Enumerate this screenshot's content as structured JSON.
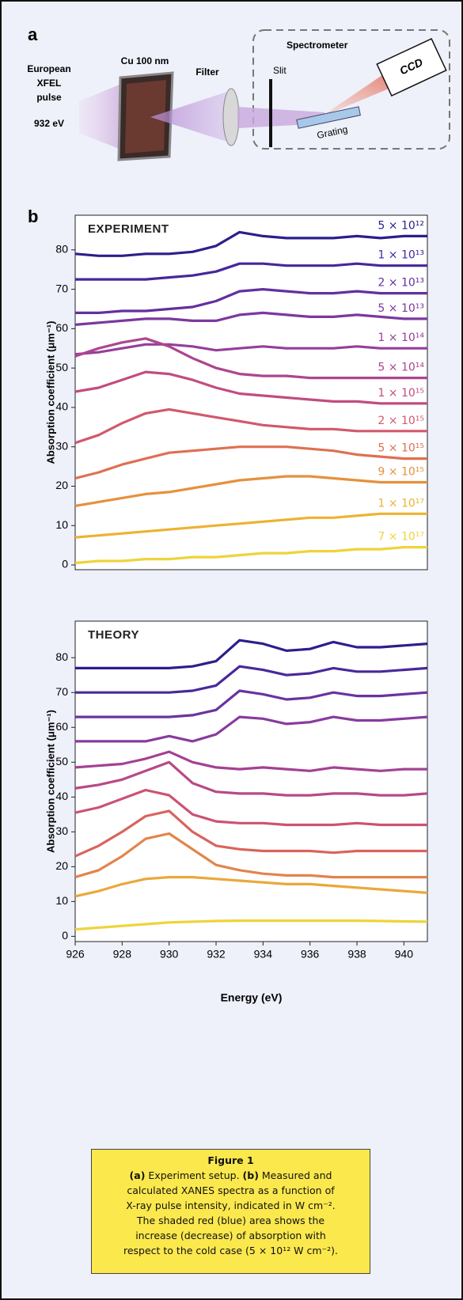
{
  "panel_a": {
    "label": "a",
    "source": [
      "European",
      "XFEL",
      "pulse"
    ],
    "energy": "932 eV",
    "sample": "Cu 100 nm",
    "filter": "Filter",
    "spectrometer": "Spectrometer",
    "slit": "Slit",
    "detector": "CCD",
    "grating": "Grating"
  },
  "panel_b_label": "b",
  "chart_data": [
    {
      "type": "line",
      "title": "EXPERIMENT",
      "y_label": "Absorption coefficient (μm⁻¹)",
      "x": [
        926,
        927,
        928,
        929,
        930,
        931,
        932,
        933,
        934,
        935,
        936,
        937,
        938,
        939,
        940,
        941
      ],
      "xlim": [
        926,
        941
      ],
      "ylim": [
        -1.2,
        88.8
      ],
      "yticks": [
        0,
        10,
        20,
        30,
        40,
        50,
        60,
        70,
        80
      ],
      "series": [
        {
          "name": "5 × 10¹²",
          "color": "#2b1f8c",
          "values": [
            79,
            78.5,
            78.5,
            79,
            79,
            79.5,
            81,
            84.5,
            83.5,
            83,
            83,
            83,
            83.5,
            83,
            83.5,
            83.5
          ]
        },
        {
          "name": "1 × 10¹³",
          "color": "#46279a",
          "values": [
            72.5,
            72.5,
            72.5,
            72.5,
            73,
            73.5,
            74.5,
            76.5,
            76.5,
            76,
            76,
            76,
            76.5,
            76,
            76,
            76
          ]
        },
        {
          "name": "2 × 10¹³",
          "color": "#62309e",
          "values": [
            64,
            64,
            64.5,
            64.5,
            65,
            65.5,
            67,
            69.5,
            70,
            69.5,
            69,
            69,
            69.5,
            69,
            69,
            69
          ]
        },
        {
          "name": "5 × 10¹³",
          "color": "#7c389f",
          "values": [
            61,
            61.5,
            62,
            62.5,
            62.5,
            62,
            62,
            63.5,
            64,
            63.5,
            63,
            63,
            63.5,
            63,
            62.5,
            62.5
          ]
        },
        {
          "name": "1 × 10¹⁴",
          "color": "#963e9c",
          "values": [
            53.5,
            54,
            55,
            56,
            56,
            55.5,
            54.5,
            55,
            55.5,
            55,
            55,
            55,
            55.5,
            55,
            55,
            55
          ]
        },
        {
          "name": "5 × 10¹⁴",
          "color": "#ad4590",
          "values": [
            53,
            55,
            56.5,
            57.5,
            55.5,
            52.5,
            50,
            48.5,
            48,
            48,
            47.5,
            47.5,
            47.5,
            47.5,
            47.5,
            47.5
          ]
        },
        {
          "name": "1 × 10¹⁵",
          "color": "#c24c80",
          "values": [
            44,
            45,
            47,
            49,
            48.5,
            47,
            45,
            43.5,
            43,
            42.5,
            42,
            41.5,
            41.5,
            41,
            41,
            41
          ]
        },
        {
          "name": "2 × 10¹⁵",
          "color": "#d2586c",
          "values": [
            31,
            33,
            36,
            38.5,
            39.5,
            38.5,
            37.5,
            36.5,
            35.5,
            35,
            34.5,
            34.5,
            34,
            34,
            34,
            34
          ]
        },
        {
          "name": "5 × 10¹⁵",
          "color": "#de7052",
          "values": [
            22,
            23.5,
            25.5,
            27,
            28.5,
            29,
            29.5,
            30,
            30,
            30,
            29.5,
            29,
            28,
            27.5,
            27,
            27
          ]
        },
        {
          "name": "9 × 10¹⁵",
          "color": "#e6913d",
          "values": [
            15,
            16,
            17,
            18,
            18.5,
            19.5,
            20.5,
            21.5,
            22,
            22.5,
            22.5,
            22,
            21.5,
            21,
            21,
            21
          ]
        },
        {
          "name": "1 × 10¹⁷",
          "color": "#ecb232",
          "values": [
            7,
            7.5,
            8,
            8.5,
            9,
            9.5,
            10,
            10.5,
            11,
            11.5,
            12,
            12,
            12.5,
            13,
            13,
            13
          ]
        },
        {
          "name": "7 × 10¹⁷",
          "color": "#eed43a",
          "values": [
            0.5,
            1,
            1,
            1.5,
            1.5,
            2,
            2,
            2.5,
            3,
            3,
            3.5,
            3.5,
            4,
            4,
            4.5,
            4.5
          ]
        }
      ]
    },
    {
      "type": "line",
      "title": "THEORY",
      "y_label": "Absorption coefficient (μm⁻¹)",
      "x_label": "Energy (eV)",
      "x": [
        926,
        927,
        928,
        929,
        930,
        931,
        932,
        933,
        934,
        935,
        936,
        937,
        938,
        939,
        940,
        941
      ],
      "xlim": [
        926,
        941
      ],
      "ylim": [
        -1.5,
        90.5
      ],
      "yticks": [
        0,
        10,
        20,
        30,
        40,
        50,
        60,
        70,
        80
      ],
      "xticks": [
        926,
        928,
        930,
        932,
        934,
        936,
        938,
        940
      ],
      "series": [
        {
          "color": "#2b1f8c",
          "values": [
            77,
            77,
            77,
            77,
            77,
            77.5,
            79,
            85,
            84,
            82,
            82.5,
            84.5,
            83,
            83,
            83.5,
            84
          ]
        },
        {
          "color": "#4a289b",
          "values": [
            70,
            70,
            70,
            70,
            70,
            70.5,
            72,
            77.5,
            76.5,
            75,
            75.5,
            77,
            76,
            76,
            76.5,
            77
          ]
        },
        {
          "color": "#6a339f",
          "values": [
            63,
            63,
            63,
            63,
            63,
            63.5,
            65,
            70.5,
            69.5,
            68,
            68.5,
            70,
            69,
            69,
            69.5,
            70
          ]
        },
        {
          "color": "#883b9e",
          "values": [
            56,
            56,
            56,
            56,
            57.5,
            56,
            58,
            63,
            62.5,
            61,
            61.5,
            63,
            62,
            62,
            62.5,
            63
          ]
        },
        {
          "color": "#a34194",
          "values": [
            48.5,
            49,
            49.5,
            51,
            53,
            50,
            48.5,
            48,
            48.5,
            48,
            47.5,
            48.5,
            48,
            47.5,
            48,
            48
          ]
        },
        {
          "color": "#b94985",
          "values": [
            42.5,
            43.5,
            45,
            47.5,
            50,
            44,
            41.5,
            41,
            41,
            40.5,
            40.5,
            41,
            41,
            40.5,
            40.5,
            41
          ]
        },
        {
          "color": "#cc5274",
          "values": [
            35.5,
            37,
            39.5,
            42,
            40.5,
            35,
            33,
            32.5,
            32.5,
            32,
            32,
            32,
            32.5,
            32,
            32,
            32
          ]
        },
        {
          "color": "#d9645e",
          "values": [
            23,
            26,
            30,
            34.5,
            36,
            30,
            26,
            25,
            24.5,
            24.5,
            24.5,
            24,
            24.5,
            24.5,
            24.5,
            24.5
          ]
        },
        {
          "color": "#e3844a",
          "values": [
            17,
            19,
            23,
            28,
            29.5,
            25,
            20.5,
            19,
            18,
            17.5,
            17.5,
            17,
            17,
            17,
            17,
            17
          ]
        },
        {
          "color": "#eaa83a",
          "values": [
            11.5,
            13,
            15,
            16.5,
            17,
            17,
            16.5,
            16,
            15.5,
            15,
            15,
            14.5,
            14,
            13.5,
            13,
            12.5
          ]
        },
        {
          "color": "#eed43a",
          "values": [
            2,
            2.5,
            3,
            3.5,
            4,
            4.2,
            4.4,
            4.5,
            4.5,
            4.5,
            4.5,
            4.5,
            4.5,
            4.4,
            4.3,
            4.2
          ]
        }
      ]
    }
  ],
  "caption": {
    "title": "Figure 1",
    "line1": [
      "(a)",
      "Experiment setup.",
      "(b)",
      "Measured and"
    ],
    "lines": [
      "calculated XANES spectra as a function of",
      "X-ray pulse intensity, indicated in W cm⁻².",
      "The shaded red (blue) area shows the",
      "increase (decrease) of absorption with",
      "respect to the cold case (5 × 10¹² W cm⁻²)."
    ]
  }
}
